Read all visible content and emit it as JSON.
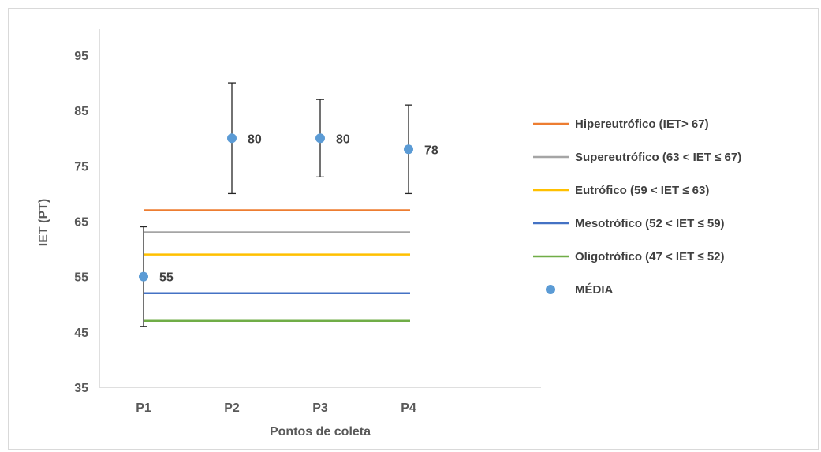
{
  "chart_data": {
    "type": "scatter",
    "title": "",
    "xlabel": "Pontos de coleta",
    "ylabel": "IET (PT)",
    "ylim": [
      35,
      95
    ],
    "yticks": [
      35,
      45,
      55,
      65,
      75,
      85,
      95
    ],
    "categories": [
      "P1",
      "P2",
      "P3",
      "P4"
    ],
    "grid": false,
    "legend_position": "right",
    "points": {
      "name": "MÉDIA",
      "color": "#5b9bd5",
      "values": [
        55,
        80,
        80,
        78
      ],
      "labels": [
        "55",
        "80",
        "80",
        "78"
      ],
      "error_low": [
        46,
        70,
        73,
        70
      ],
      "error_high": [
        64,
        90,
        87,
        86
      ]
    },
    "reference_lines": [
      {
        "name": "Hipereutrófico (IET> 67)",
        "value": 67,
        "color": "#ed7d31"
      },
      {
        "name": "Supereutrófico (63 < IET ≤ 67)",
        "value": 63,
        "color": "#a5a5a5"
      },
      {
        "name": "Eutrófico (59 < IET ≤ 63)",
        "value": 59,
        "color": "#ffc000"
      },
      {
        "name": "Mesotrófico (52 < IET ≤ 59)",
        "value": 52,
        "color": "#4472c4"
      },
      {
        "name": "Oligotrófico (47 < IET ≤ 52)",
        "value": 47,
        "color": "#70ad47"
      }
    ]
  }
}
